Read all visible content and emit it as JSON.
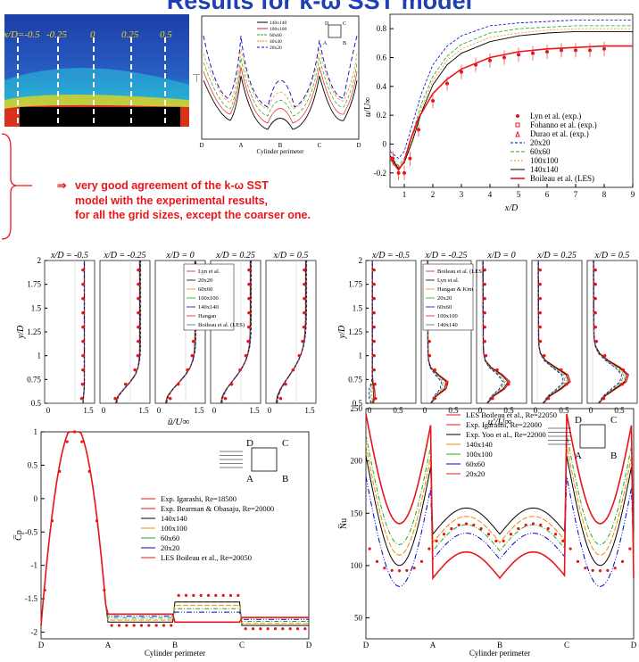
{
  "title": "Results for k-ω SST model",
  "contour": {
    "labels": [
      "x/D=-0.5",
      "-0.25",
      "0",
      "0.25",
      "0.5"
    ]
  },
  "conclusion": {
    "arrow": "⇒",
    "lines": [
      "very good agreement of the k-ω SST",
      "model with the experimental results,",
      "for all the grid sizes, except the coarser one."
    ]
  },
  "colors": {
    "red": "#e8151b",
    "blue": "#1f3fb3",
    "orange": "#f08c00",
    "green": "#1fa81f",
    "navy": "#0000cc",
    "grey": "#666666"
  },
  "grid_legend": [
    "140x140",
    "100x100",
    "60x60",
    "40x40",
    "20x20"
  ],
  "corner_labels": {
    "A": "A",
    "B": "B",
    "C": "C",
    "D": "D"
  },
  "axis": {
    "perimeter": "Cylinder perimeter",
    "xD": "x/D",
    "yD": "y/D",
    "uU": "u/U∞",
    "ubar": "ū/U∞",
    "uprime": "u'/U∞",
    "cp": "C̅p",
    "nu": "N̅u",
    "small_y": "—|"
  },
  "profile_titles": [
    "x/D = -0.5",
    "x/D = -0.25",
    "x/D = 0",
    "x/D = 0.25",
    "x/D = 0.5"
  ],
  "centerline_legend": [
    "Lyn et al. (exp.)",
    "Fohanno et al. (exp.)",
    "Durao et al. (exp.)",
    "20x20",
    "60x60",
    "100x100",
    "140x140",
    "Boileau et al. (LES)"
  ],
  "mean_legend": [
    "Lyn et al.",
    "20x20",
    "60x60",
    "100x100",
    "140x140",
    "Hangan",
    "Boileau et al. (LES)"
  ],
  "rms_legend": [
    "Boileau et al. (LES)",
    "Lyn et al.",
    "Hangan & Kim",
    "20x20",
    "60x60",
    "100x100",
    "140x140"
  ],
  "cp_legend": [
    "Exp. Igarashi, Re=18500",
    "Exp. Bearman & Obasaju, Re=20000",
    "140x140",
    "100x100",
    "60x60",
    "20x20",
    "LES Boileau et al., Re=20050"
  ],
  "nu_legend": [
    "LES Boileau et al., Re=22050",
    "Exp. Igarashi, Re=22000",
    "Exp. Yoo et al., Re=22000",
    "140x140",
    "100x100",
    "60x60",
    "20x20"
  ],
  "chart_data": [
    {
      "type": "line",
      "ylabel": "u/U∞",
      "xlabel": "x/D",
      "xlim": [
        0.5,
        9
      ],
      "ylim": [
        -0.3,
        0.9
      ],
      "xticks": [
        1,
        2,
        3,
        4,
        5,
        6,
        7,
        8,
        9
      ],
      "yticks": [
        -0.2,
        0,
        0.2,
        0.4,
        0.6,
        0.8
      ],
      "series": [
        {
          "name": "20x20",
          "x": [
            0.5,
            0.8,
            1.0,
            1.3,
            1.6,
            2.0,
            2.5,
            3,
            4,
            5,
            6,
            7,
            8,
            9
          ],
          "y": [
            -0.05,
            -0.1,
            -0.05,
            0.15,
            0.35,
            0.55,
            0.68,
            0.75,
            0.82,
            0.84,
            0.85,
            0.86,
            0.86,
            0.86
          ]
        },
        {
          "name": "60x60",
          "x": [
            0.5,
            0.8,
            1.0,
            1.3,
            1.6,
            2.0,
            2.5,
            3,
            4,
            5,
            6,
            7,
            8,
            9
          ],
          "y": [
            -0.08,
            -0.15,
            -0.1,
            0.08,
            0.28,
            0.47,
            0.61,
            0.69,
            0.77,
            0.8,
            0.81,
            0.82,
            0.82,
            0.82
          ]
        },
        {
          "name": "100x100",
          "x": [
            0.5,
            0.8,
            1.0,
            1.3,
            1.6,
            2.0,
            2.5,
            3,
            4,
            5,
            6,
            7,
            8,
            9
          ],
          "y": [
            -0.08,
            -0.16,
            -0.12,
            0.05,
            0.25,
            0.44,
            0.58,
            0.66,
            0.74,
            0.77,
            0.79,
            0.8,
            0.8,
            0.8
          ]
        },
        {
          "name": "140x140",
          "x": [
            0.5,
            0.8,
            1.0,
            1.3,
            1.6,
            2.0,
            2.5,
            3,
            4,
            5,
            6,
            7,
            8,
            9
          ],
          "y": [
            -0.08,
            -0.17,
            -0.13,
            0.03,
            0.22,
            0.41,
            0.55,
            0.63,
            0.71,
            0.75,
            0.77,
            0.78,
            0.78,
            0.78
          ]
        },
        {
          "name": "Boileau et al. (LES)",
          "x": [
            0.5,
            0.8,
            1.0,
            1.2,
            1.5,
            2.0,
            2.5,
            3,
            4,
            5,
            6,
            7,
            8,
            9
          ],
          "y": [
            -0.1,
            -0.18,
            -0.12,
            0.02,
            0.18,
            0.35,
            0.45,
            0.52,
            0.6,
            0.64,
            0.66,
            0.67,
            0.68,
            0.68
          ]
        },
        {
          "name": "Lyn et al. (exp.)",
          "x": [
            0.6,
            0.8,
            1.0,
            1.2,
            1.5,
            2.0,
            2.5,
            3,
            3.5,
            4,
            4.5,
            5,
            5.5,
            6,
            6.5,
            7,
            7.5,
            8
          ],
          "y": [
            -0.1,
            -0.2,
            -0.2,
            -0.1,
            0.1,
            0.3,
            0.42,
            0.5,
            0.55,
            0.58,
            0.6,
            0.62,
            0.63,
            0.64,
            0.65,
            0.65,
            0.65,
            0.66
          ]
        }
      ]
    },
    {
      "type": "line",
      "ylabel": "C̅p",
      "xlabel": "Cylinder perimeter",
      "ylim": [
        -2.1,
        1.0
      ],
      "yticks": [
        1,
        0.5,
        0,
        -0.5,
        -1,
        -1.5,
        -2
      ],
      "categories": [
        "D",
        "A",
        "B",
        "C",
        "D"
      ]
    },
    {
      "type": "line",
      "ylabel": "N̅u",
      "xlabel": "Cylinder perimeter",
      "ylim": [
        30,
        250
      ],
      "yticks": [
        50,
        100,
        150,
        200,
        250
      ],
      "categories": [
        "D",
        "A",
        "B",
        "C",
        "D"
      ]
    },
    {
      "type": "line",
      "ylabel": "y/D",
      "xlabel": "ū/U∞",
      "ylim": [
        0.5,
        2.0
      ],
      "yticks": [
        0.5,
        0.75,
        1,
        1.25,
        1.5,
        1.75,
        2
      ]
    },
    {
      "type": "line",
      "ylabel": "y/D",
      "xlabel": "u'/U∞",
      "ylim": [
        0.5,
        2.0
      ],
      "yticks": [
        0.5,
        0.75,
        1,
        1.25,
        1.5,
        1.75,
        2
      ]
    }
  ]
}
